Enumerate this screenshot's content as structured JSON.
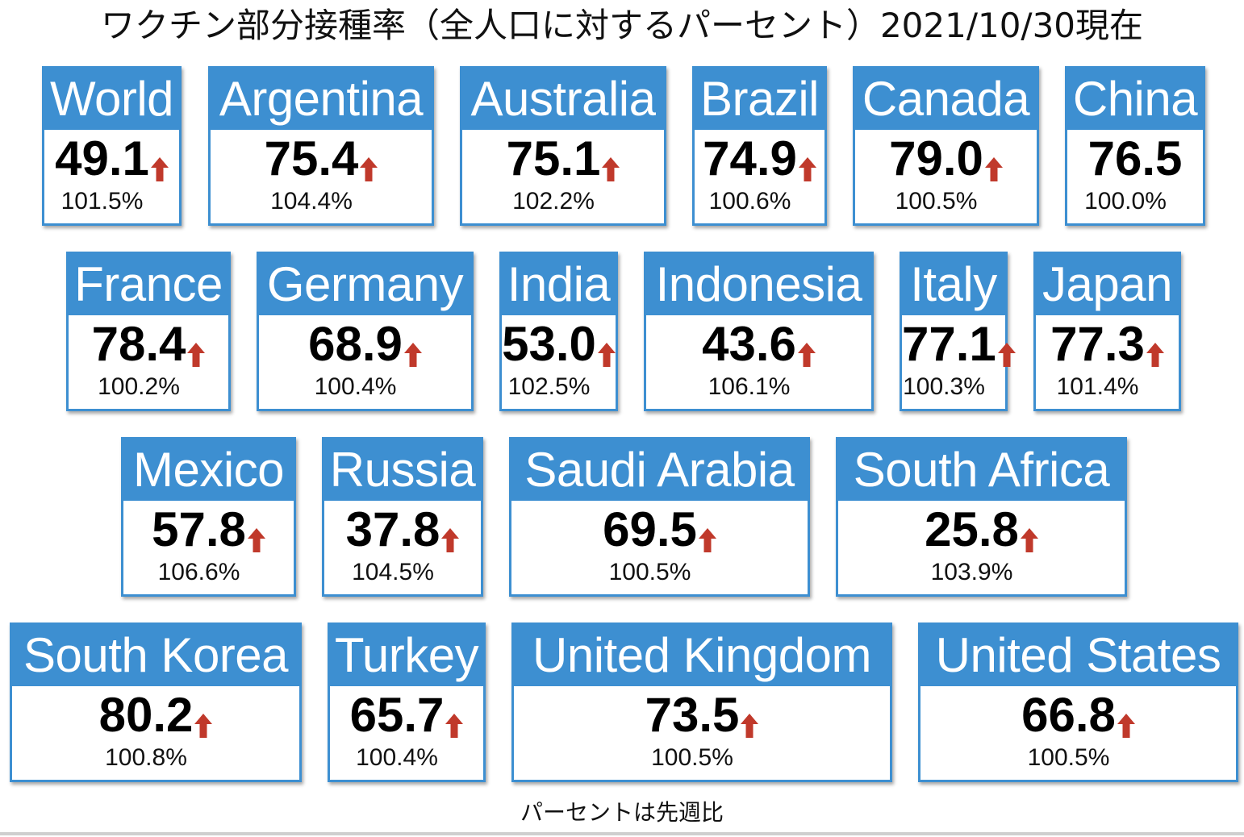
{
  "title": "ワクチン部分接種率（全人口に対するパーセント）2021/10/30現在",
  "footnote": "パーセントは先週比",
  "colors": {
    "header": "#3d8fd1",
    "arrow_up": "#c0392b",
    "value_text": "#000000"
  },
  "chart_data": {
    "type": "table",
    "title": "ワクチン部分接種率（全人口に対するパーセント）2021/10/30現在",
    "columns": [
      "country",
      "rate",
      "trend",
      "week_over_week"
    ],
    "rows": [
      {
        "country": "World",
        "rate": "49.1",
        "trend": "up",
        "week_over_week": "101.5%"
      },
      {
        "country": "Argentina",
        "rate": "75.4",
        "trend": "up",
        "week_over_week": "104.4%"
      },
      {
        "country": "Australia",
        "rate": "75.1",
        "trend": "up",
        "week_over_week": "102.2%"
      },
      {
        "country": "Brazil",
        "rate": "74.9",
        "trend": "up",
        "week_over_week": "100.6%"
      },
      {
        "country": "Canada",
        "rate": "79.0",
        "trend": "up",
        "week_over_week": "100.5%"
      },
      {
        "country": "China",
        "rate": "76.5",
        "trend": "none",
        "week_over_week": "100.0%"
      },
      {
        "country": "France",
        "rate": "78.4",
        "trend": "up",
        "week_over_week": "100.2%"
      },
      {
        "country": "Germany",
        "rate": "68.9",
        "trend": "up",
        "week_over_week": "100.4%"
      },
      {
        "country": "India",
        "rate": "53.0",
        "trend": "up",
        "week_over_week": "102.5%"
      },
      {
        "country": "Indonesia",
        "rate": "43.6",
        "trend": "up",
        "week_over_week": "106.1%"
      },
      {
        "country": "Italy",
        "rate": "77.1",
        "trend": "up",
        "week_over_week": "100.3%"
      },
      {
        "country": "Japan",
        "rate": "77.3",
        "trend": "up",
        "week_over_week": "101.4%"
      },
      {
        "country": "Mexico",
        "rate": "57.8",
        "trend": "up",
        "week_over_week": "106.6%"
      },
      {
        "country": "Russia",
        "rate": "37.8",
        "trend": "up",
        "week_over_week": "104.5%"
      },
      {
        "country": "Saudi Arabia",
        "rate": "69.5",
        "trend": "up",
        "week_over_week": "100.5%"
      },
      {
        "country": "South Africa",
        "rate": "25.8",
        "trend": "up",
        "week_over_week": "103.9%"
      },
      {
        "country": "South Korea",
        "rate": "80.2",
        "trend": "up",
        "week_over_week": "100.8%"
      },
      {
        "country": "Turkey",
        "rate": "65.7",
        "trend": "up",
        "week_over_week": "100.4%"
      },
      {
        "country": "United Kingdom",
        "rate": "73.5",
        "trend": "up",
        "week_over_week": "100.5%"
      },
      {
        "country": "United States",
        "rate": "66.8",
        "trend": "up",
        "week_over_week": "100.5%"
      }
    ]
  }
}
